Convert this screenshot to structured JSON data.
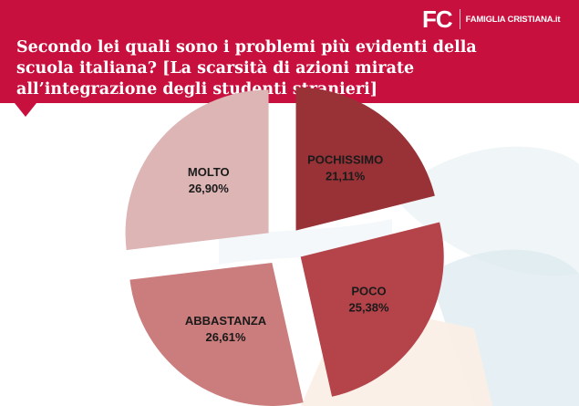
{
  "header": {
    "title": "Secondo lei quali sono i problemi più evidenti della scuola italiana? [La scarsità di azioni mirate all’integrazione degli studenti stranieri]",
    "brand_mark": "FC",
    "brand_name": "FAMIGLIA CRISTIANA.it",
    "background_color": "#c8103e"
  },
  "chart_data": {
    "type": "pie",
    "exploded": true,
    "slices": [
      {
        "label": "POCHISSIMO",
        "value": 21.11,
        "value_label": "21,11%",
        "color": "#983236"
      },
      {
        "label": "POCO",
        "value": 25.38,
        "value_label": "25,38%",
        "color": "#b4434a"
      },
      {
        "label": "ABBASTANZA",
        "value": 26.61,
        "value_label": "26,61%",
        "color": "#cb7c7c"
      },
      {
        "label": "MOLTO",
        "value": 26.9,
        "value_label": "26,90%",
        "color": "#ddb5b5"
      }
    ]
  }
}
